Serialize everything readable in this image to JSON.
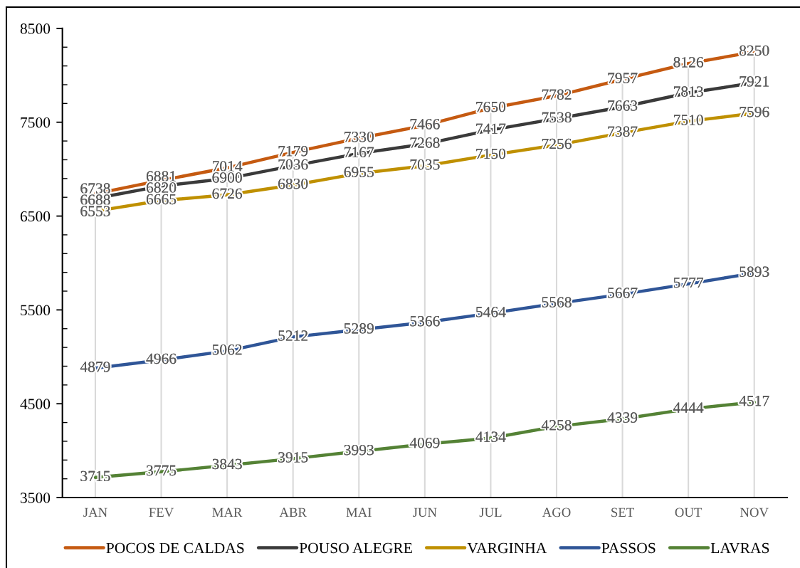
{
  "chart_data": {
    "type": "line",
    "categories": [
      "JAN",
      "FEV",
      "MAR",
      "ABR",
      "MAI",
      "JUN",
      "JUL",
      "AGO",
      "SET",
      "OUT",
      "NOV"
    ],
    "series": [
      {
        "name": "POCOS DE CALDAS",
        "color": "#c55a11",
        "values": [
          6738,
          6881,
          7014,
          7179,
          7330,
          7466,
          7650,
          7782,
          7957,
          8126,
          8250
        ]
      },
      {
        "name": "POUSO ALEGRE",
        "color": "#3a3a3a",
        "values": [
          6688,
          6820,
          6900,
          7036,
          7167,
          7268,
          7417,
          7538,
          7663,
          7813,
          7921
        ]
      },
      {
        "name": "VARGINHA",
        "color": "#bf9000",
        "values": [
          6553,
          6665,
          6726,
          6830,
          6955,
          7035,
          7150,
          7256,
          7387,
          7510,
          7596
        ]
      },
      {
        "name": "PASSOS",
        "color": "#2f5597",
        "values": [
          4879,
          4966,
          5062,
          5212,
          5289,
          5366,
          5464,
          5568,
          5667,
          5777,
          5893
        ]
      },
      {
        "name": "LAVRAS",
        "color": "#548235",
        "values": [
          3715,
          3775,
          3843,
          3915,
          3993,
          4069,
          4134,
          4258,
          4339,
          4444,
          4517
        ]
      }
    ],
    "ylim": [
      3500,
      8500
    ],
    "yticks": [
      3500,
      4500,
      5500,
      6500,
      7500,
      8500
    ],
    "grid": "x",
    "legend": "bottom",
    "data_labels": true,
    "marker": "none",
    "line_style": "solid"
  }
}
